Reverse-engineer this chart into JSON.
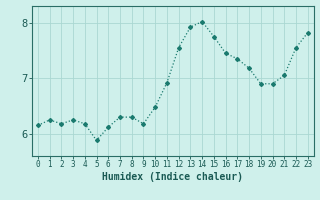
{
  "x": [
    0,
    1,
    2,
    3,
    4,
    5,
    6,
    7,
    8,
    9,
    10,
    11,
    12,
    13,
    14,
    15,
    16,
    17,
    18,
    19,
    20,
    21,
    22,
    23
  ],
  "y": [
    6.15,
    6.25,
    6.18,
    6.25,
    6.18,
    5.88,
    6.12,
    6.3,
    6.3,
    6.18,
    6.48,
    6.92,
    7.55,
    7.92,
    8.02,
    7.75,
    7.45,
    7.35,
    7.18,
    6.9,
    6.9,
    7.05,
    7.55,
    7.82
  ],
  "line_color": "#1a7a6e",
  "marker": "D",
  "marker_size": 2.0,
  "line_width": 0.9,
  "bg_color": "#cff0eb",
  "grid_color": "#aad8d2",
  "xlabel": "Humidex (Indice chaleur)",
  "ylim": [
    5.6,
    8.3
  ],
  "xlim": [
    -0.5,
    23.5
  ],
  "yticks": [
    6,
    7,
    8
  ],
  "xticks": [
    0,
    1,
    2,
    3,
    4,
    5,
    6,
    7,
    8,
    9,
    10,
    11,
    12,
    13,
    14,
    15,
    16,
    17,
    18,
    19,
    20,
    21,
    22,
    23
  ],
  "tick_label_fontsize": 5.5,
  "xlabel_fontsize": 7.0,
  "ytick_fontsize": 7.5,
  "axis_color": "#2a6e66",
  "tick_color": "#1a5a54"
}
